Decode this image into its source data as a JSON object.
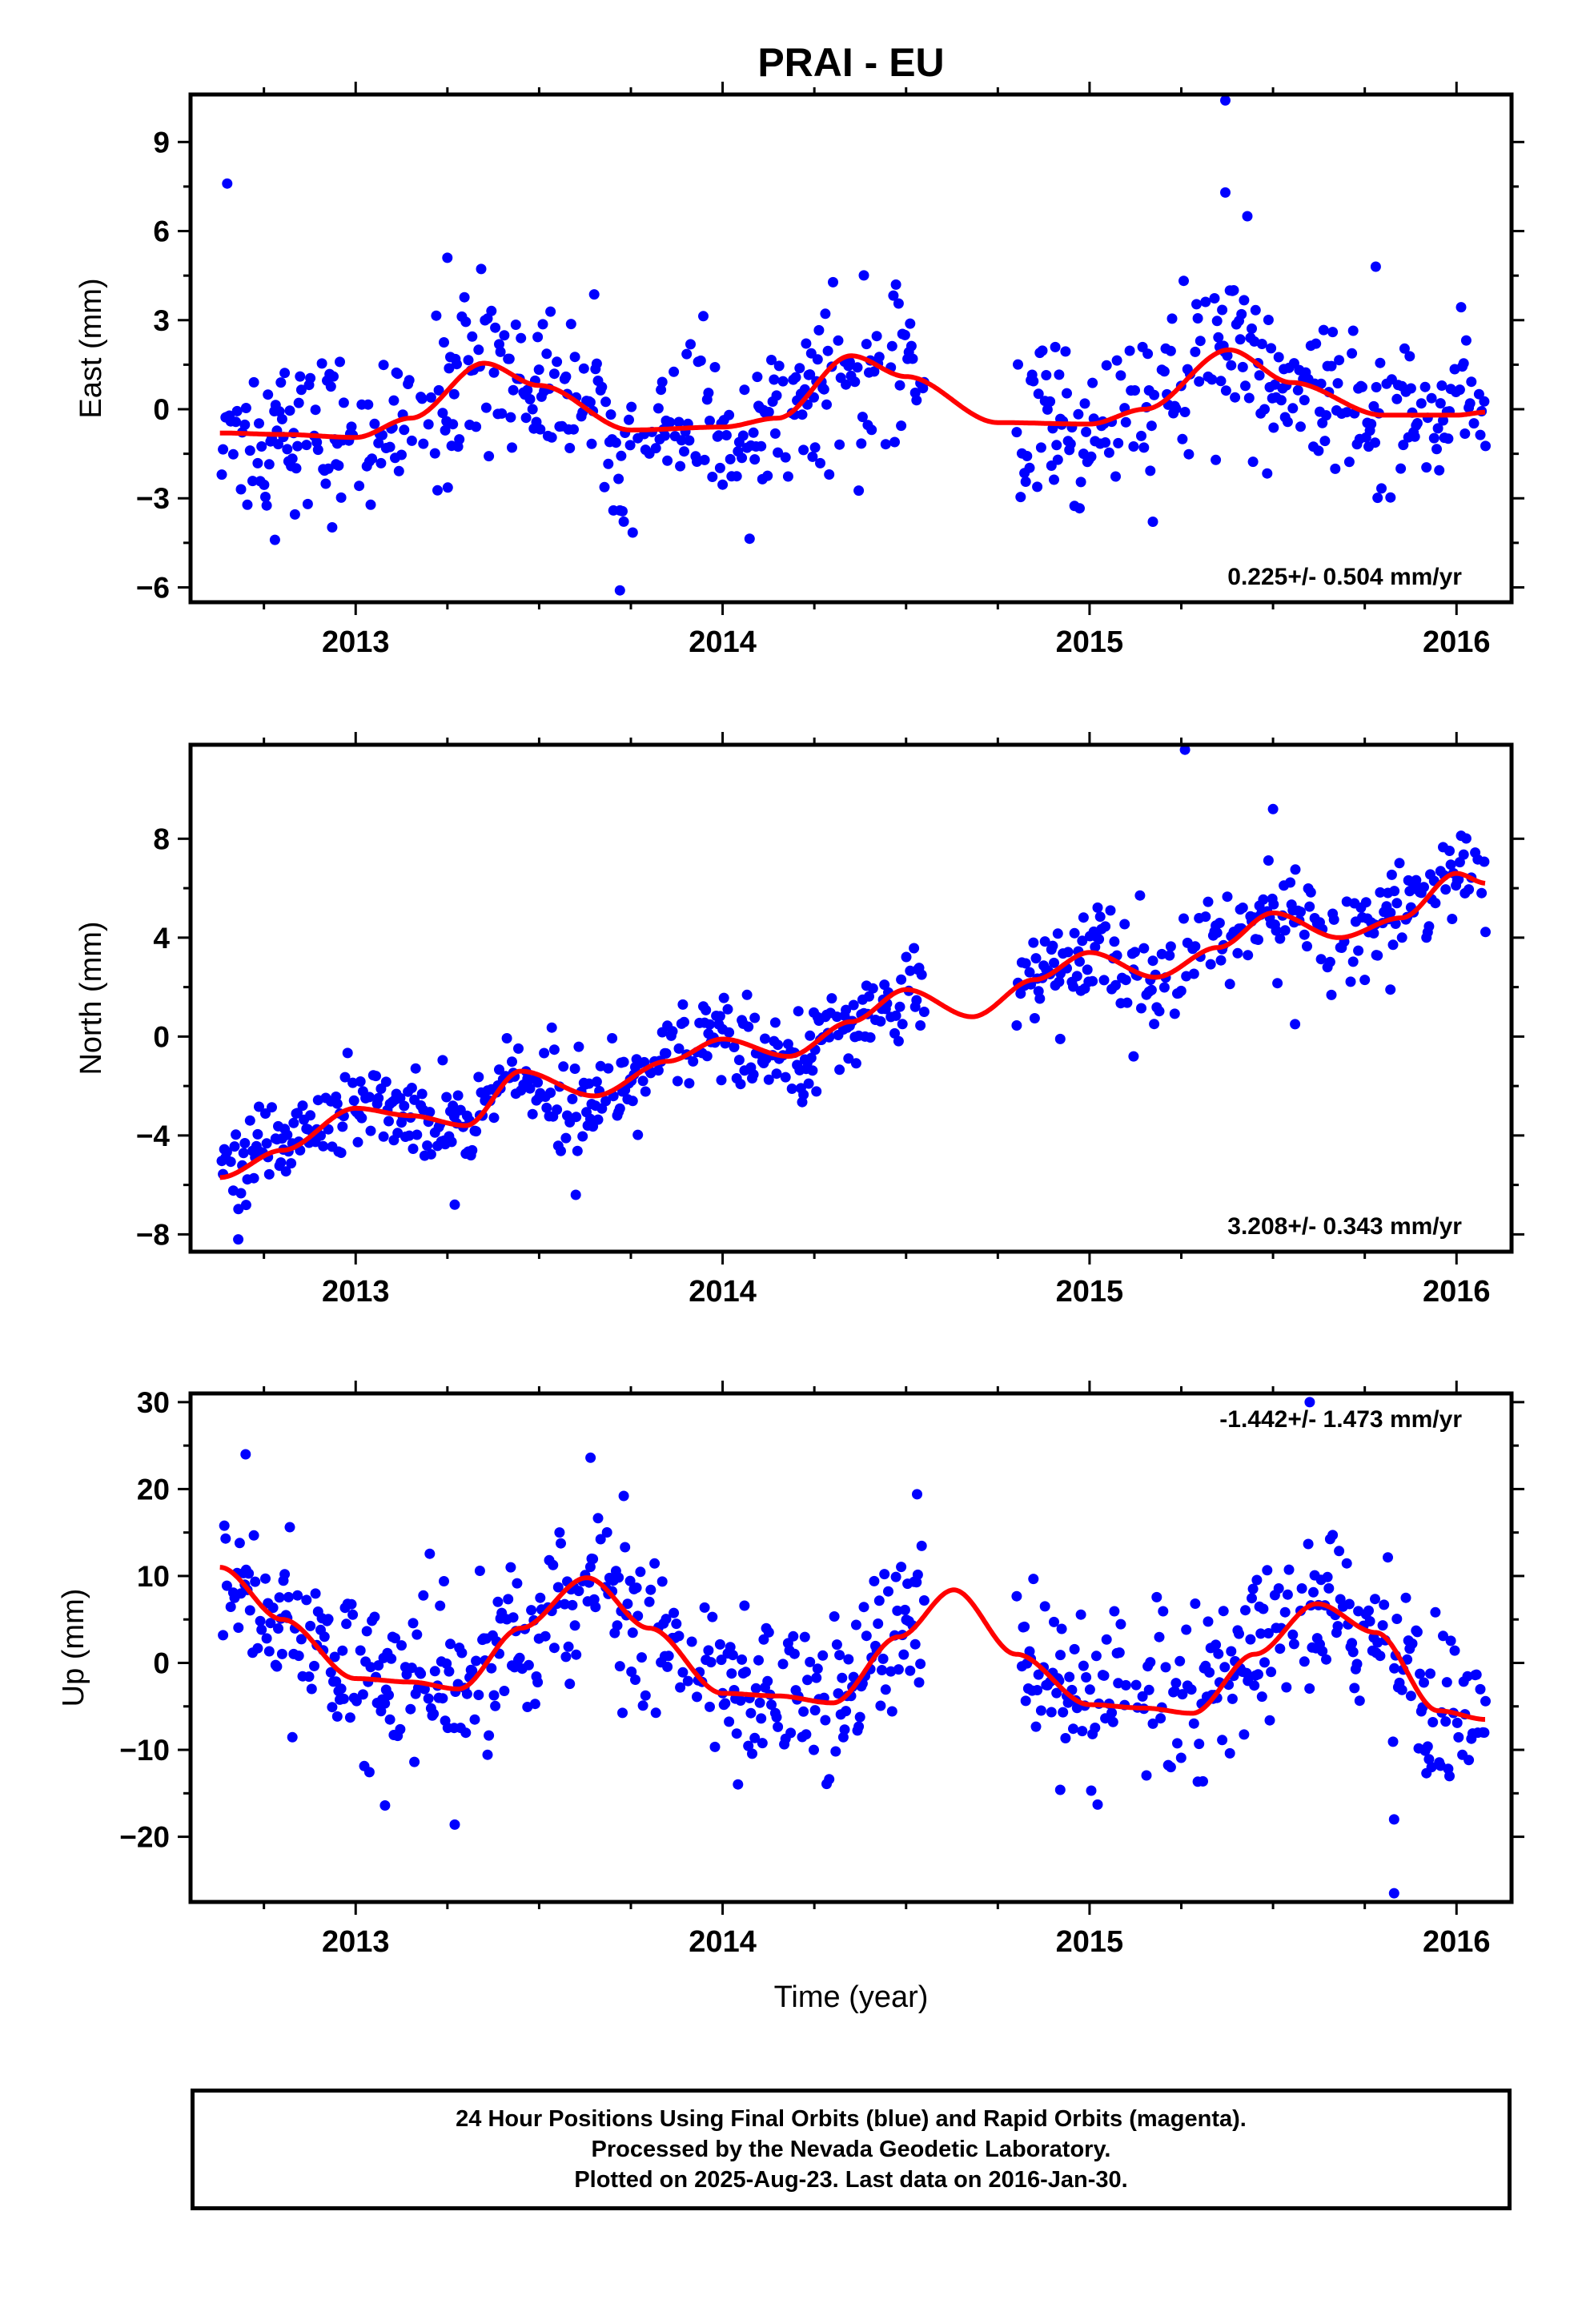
{
  "chart_data": {
    "title": "PRAI - EU",
    "type": "scatter",
    "xlabel": "Time (year)",
    "xlim": [
      2012.55,
      2016.15
    ],
    "x_ticks": [
      2013,
      2014,
      2015,
      2016
    ],
    "colors": {
      "points": "#0000ff",
      "model": "#ff0000",
      "frame": "#000000"
    },
    "panels": [
      {
        "id": "east",
        "ylabel": "East (mm)",
        "ylim": [
          -6.5,
          10.6
        ],
        "y_ticks": [
          -6,
          -3,
          0,
          3,
          6,
          9
        ],
        "rate_label": "0.225+/- 0.504 mm/yr",
        "rate": 0.225,
        "seasonal": {
          "annual_sin": -0.6,
          "annual_cos": -1.1,
          "semiannual_sin": -0.2,
          "semiannual_cos": 0.3
        },
        "model": [
          [
            2012.63,
            -0.8
          ],
          [
            2012.8,
            -0.85
          ],
          [
            2013.0,
            -0.95
          ],
          [
            2013.15,
            -0.3
          ],
          [
            2013.35,
            1.55
          ],
          [
            2013.5,
            0.8
          ],
          [
            2013.75,
            -0.7
          ],
          [
            2014.0,
            -0.6
          ],
          [
            2014.15,
            -0.3
          ],
          [
            2014.35,
            1.8
          ],
          [
            2014.5,
            1.1
          ],
          [
            2014.75,
            -0.45
          ],
          [
            2015.0,
            -0.5
          ],
          [
            2015.15,
            0.0
          ],
          [
            2015.38,
            2.0
          ],
          [
            2015.55,
            0.9
          ],
          [
            2015.8,
            -0.2
          ],
          [
            2016.0,
            -0.2
          ],
          [
            2016.08,
            -0.1
          ]
        ],
        "noise": 1.35,
        "outliers": [
          [
            2012.65,
            7.6
          ],
          [
            2012.78,
            -4.4
          ],
          [
            2013.25,
            5.1
          ],
          [
            2013.72,
            -6.1
          ],
          [
            2015.37,
            10.4
          ],
          [
            2015.37,
            7.3
          ],
          [
            2015.43,
            6.5
          ],
          [
            2015.78,
            4.8
          ]
        ]
      },
      {
        "id": "north",
        "ylabel": "North (mm)",
        "ylim": [
          -8.7,
          11.8
        ],
        "y_ticks": [
          -8,
          -4,
          0,
          4,
          8
        ],
        "rate_label": "3.208+/- 0.343 mm/yr",
        "rate": 3.208,
        "seasonal": {
          "annual_sin": -0.8,
          "annual_cos": 0.5,
          "semiannual_sin": 0.2,
          "semiannual_cos": -0.2
        },
        "model": [
          [
            2012.63,
            -5.7
          ],
          [
            2012.8,
            -4.6
          ],
          [
            2013.0,
            -2.9
          ],
          [
            2013.15,
            -3.2
          ],
          [
            2013.3,
            -3.6
          ],
          [
            2013.45,
            -1.4
          ],
          [
            2013.65,
            -2.4
          ],
          [
            2013.85,
            -1.0
          ],
          [
            2014.0,
            -0.1
          ],
          [
            2014.18,
            -0.8
          ],
          [
            2014.35,
            0.6
          ],
          [
            2014.5,
            1.9
          ],
          [
            2014.68,
            0.8
          ],
          [
            2014.85,
            2.3
          ],
          [
            2015.0,
            3.4
          ],
          [
            2015.18,
            2.4
          ],
          [
            2015.35,
            3.6
          ],
          [
            2015.5,
            5.0
          ],
          [
            2015.68,
            4.0
          ],
          [
            2015.85,
            4.8
          ],
          [
            2016.0,
            6.6
          ],
          [
            2016.08,
            6.2
          ]
        ],
        "noise": 0.9,
        "outliers": [
          [
            2012.68,
            -8.2
          ],
          [
            2013.27,
            -6.8
          ],
          [
            2013.6,
            -6.4
          ],
          [
            2014.92,
            -0.1
          ],
          [
            2015.12,
            -0.8
          ],
          [
            2015.26,
            11.6
          ],
          [
            2015.5,
            9.2
          ],
          [
            2015.56,
            0.5
          ],
          [
            2015.82,
            1.9
          ]
        ]
      },
      {
        "id": "up",
        "ylabel": "Up (mm)",
        "ylim": [
          -27.5,
          31.0
        ],
        "y_ticks": [
          -20,
          -10,
          0,
          10,
          20,
          30
        ],
        "rate_label": "-1.442+/- 1.473 mm/yr",
        "rate": -1.442,
        "seasonal": {
          "annual_sin": 5.5,
          "annual_cos": -2.0,
          "semiannual_sin": 0.8,
          "semiannual_cos": 0.5
        },
        "model": [
          [
            2012.63,
            11.0
          ],
          [
            2012.8,
            5.0
          ],
          [
            2013.0,
            -1.8
          ],
          [
            2013.15,
            -2.2
          ],
          [
            2013.28,
            -3.0
          ],
          [
            2013.45,
            4.0
          ],
          [
            2013.63,
            9.8
          ],
          [
            2013.8,
            4.0
          ],
          [
            2014.0,
            -3.5
          ],
          [
            2014.15,
            -3.8
          ],
          [
            2014.3,
            -4.6
          ],
          [
            2014.48,
            3.0
          ],
          [
            2014.63,
            8.4
          ],
          [
            2014.8,
            1.0
          ],
          [
            2015.0,
            -4.8
          ],
          [
            2015.15,
            -5.2
          ],
          [
            2015.28,
            -5.8
          ],
          [
            2015.45,
            1.0
          ],
          [
            2015.62,
            6.8
          ],
          [
            2015.78,
            3.5
          ],
          [
            2015.95,
            -5.5
          ],
          [
            2016.08,
            -6.5
          ]
        ],
        "noise": 4.5,
        "outliers": [
          [
            2012.7,
            24.0
          ],
          [
            2013.08,
            -16.4
          ],
          [
            2013.27,
            -18.6
          ],
          [
            2013.64,
            23.6
          ],
          [
            2014.53,
            19.4
          ],
          [
            2015.6,
            30.0
          ],
          [
            2015.83,
            -18.0
          ],
          [
            2015.83,
            -26.5
          ],
          [
            2014.92,
            -14.6
          ]
        ]
      }
    ],
    "data_gaps": [
      [
        2014.55,
        2014.8
      ]
    ],
    "end_year": 2016.08
  },
  "footer": {
    "line1": "24 Hour Positions Using Final Orbits (blue) and Rapid Orbits (magenta).",
    "line2": "Processed by the Nevada Geodetic Laboratory.",
    "line3": "Plotted on 2025-Aug-23. Last data on 2016-Jan-30."
  }
}
